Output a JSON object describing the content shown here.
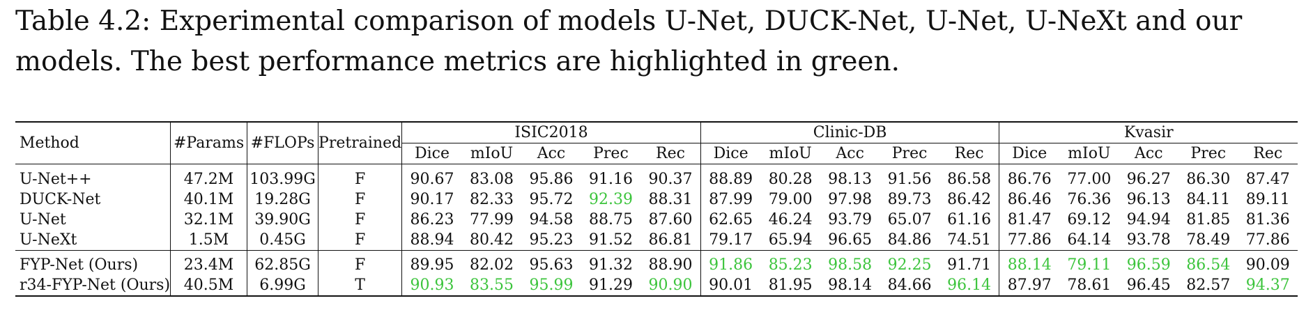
{
  "caption": "Table 4.2: Experimental comparison of models U-Net, DUCK-Net, U-Net, U-NeXt and our models. The best performance metrics are highlighted in green.",
  "headers": {
    "method": "Method",
    "params": "#Params",
    "flops": "#FLOPs",
    "pretrained": "Pretrained",
    "datasets": [
      "ISIC2018",
      "Clinic-DB",
      "Kvasir"
    ],
    "metrics": [
      "Dice",
      "mIoU",
      "Acc",
      "Prec",
      "Rec"
    ]
  },
  "highlight_color": "#3cc43c",
  "group1": [
    {
      "method": "U-Net++",
      "params": "47.2M",
      "flops": "103.99G",
      "pretrained": "F",
      "values": [
        "90.67",
        "83.08",
        "95.86",
        "91.16",
        "90.37",
        "88.89",
        "80.28",
        "98.13",
        "91.56",
        "86.58",
        "86.76",
        "77.00",
        "96.27",
        "86.30",
        "87.47"
      ],
      "best": []
    },
    {
      "method": "DUCK-Net",
      "params": "40.1M",
      "flops": "19.28G",
      "pretrained": "F",
      "values": [
        "90.17",
        "82.33",
        "95.72",
        "92.39",
        "88.31",
        "87.99",
        "79.00",
        "97.98",
        "89.73",
        "86.42",
        "86.46",
        "76.36",
        "96.13",
        "84.11",
        "89.11"
      ],
      "best": [
        3
      ]
    },
    {
      "method": "U-Net",
      "params": "32.1M",
      "flops": "39.90G",
      "pretrained": "F",
      "values": [
        "86.23",
        "77.99",
        "94.58",
        "88.75",
        "87.60",
        "62.65",
        "46.24",
        "93.79",
        "65.07",
        "61.16",
        "81.47",
        "69.12",
        "94.94",
        "81.85",
        "81.36"
      ],
      "best": []
    },
    {
      "method": "U-NeXt",
      "params": "1.5M",
      "flops": "0.45G",
      "pretrained": "F",
      "values": [
        "88.94",
        "80.42",
        "95.23",
        "91.52",
        "86.81",
        "79.17",
        "65.94",
        "96.65",
        "84.86",
        "74.51",
        "77.86",
        "64.14",
        "93.78",
        "78.49",
        "77.86"
      ],
      "best": []
    }
  ],
  "group2": [
    {
      "method": "FYP-Net (Ours)",
      "params": "23.4M",
      "flops": "62.85G",
      "pretrained": "F",
      "values": [
        "89.95",
        "82.02",
        "95.63",
        "91.32",
        "88.90",
        "91.86",
        "85.23",
        "98.58",
        "92.25",
        "91.71",
        "88.14",
        "79.11",
        "96.59",
        "86.54",
        "90.09"
      ],
      "best": [
        5,
        6,
        7,
        8,
        10,
        11,
        12,
        13
      ]
    },
    {
      "method": "r34-FYP-Net (Ours)",
      "params": "40.5M",
      "flops": "6.99G",
      "pretrained": "T",
      "values": [
        "90.93",
        "83.55",
        "95.99",
        "91.29",
        "90.90",
        "90.01",
        "81.95",
        "98.14",
        "84.66",
        "96.14",
        "87.97",
        "78.61",
        "96.45",
        "82.57",
        "94.37"
      ],
      "best": [
        0,
        1,
        2,
        4,
        9,
        14
      ]
    }
  ]
}
